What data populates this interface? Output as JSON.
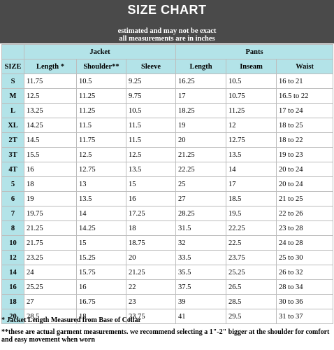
{
  "title": "SIZE CHART",
  "subtitle_line1": "estimated and may not be exact",
  "subtitle_line2": "all measurements are in inches",
  "groups": {
    "jacket": "Jacket",
    "pants": "Pants"
  },
  "columns": {
    "size": "SIZE",
    "length_jacket": "Length *",
    "shoulder": "Shoulder**",
    "sleeve": "Sleeve",
    "length_pants": "Length",
    "inseam": "Inseam",
    "waist": "Waist"
  },
  "rows": [
    [
      "S",
      "11.75",
      "10.5",
      "9.25",
      "16.25",
      "10.5",
      "16 to 21"
    ],
    [
      "M",
      "12.5",
      "11.25",
      "9.75",
      "17",
      "10.75",
      "16.5 to 22"
    ],
    [
      "L",
      "13.25",
      "11.25",
      "10.5",
      "18.25",
      "11.25",
      "17 to 24"
    ],
    [
      "XL",
      "14.25",
      "11.5",
      "11.5",
      "19",
      "12",
      "18 to 25"
    ],
    [
      "2T",
      "14.5",
      "11.75",
      "11.5",
      "20",
      "12.75",
      "18 to 22"
    ],
    [
      "3T",
      "15.5",
      "12.5",
      "12.5",
      "21.25",
      "13.5",
      "19 to 23"
    ],
    [
      "4T",
      "16",
      "12.75",
      "13.5",
      "22.25",
      "14",
      "20 to 24"
    ],
    [
      "5",
      "18",
      "13",
      "15",
      "25",
      "17",
      "20 to 24"
    ],
    [
      "6",
      "19",
      "13.5",
      "16",
      "27",
      "18.5",
      "21 to 25"
    ],
    [
      "7",
      "19.75",
      "14",
      "17.25",
      "28.25",
      "19.5",
      "22 to 26"
    ],
    [
      "8",
      "21.25",
      "14.25",
      "18",
      "31.5",
      "22.25",
      "23 to 28"
    ],
    [
      "10",
      "21.75",
      "15",
      "18.75",
      "32",
      "22.5",
      "24 to 28"
    ],
    [
      "12",
      "23.25",
      "15.25",
      "20",
      "33.5",
      "23.75",
      "25 to 30"
    ],
    [
      "14",
      "24",
      "15.75",
      "21.25",
      "35.5",
      "25.25",
      "26 to 32"
    ],
    [
      "16",
      "25.25",
      "16",
      "22",
      "37.5",
      "26.5",
      "28 to 34"
    ],
    [
      "18",
      "27",
      "16.75",
      "23",
      "39",
      "28.5",
      "30 to 36"
    ],
    [
      "20",
      "28.5",
      "18",
      "23.75",
      "41",
      "29.5",
      "31 to 37"
    ]
  ],
  "note1": "* Jacket Length Measured from Base of Collar",
  "note2": "**these are actual garment measurements. we recommend selecting a 1\"-2\" bigger at the shoulder for comfort and easy movement when worn",
  "colors": {
    "header_bg": "#4a4a4a",
    "cell_accent": "#b3e3e8",
    "border": "#bdbdbd"
  }
}
